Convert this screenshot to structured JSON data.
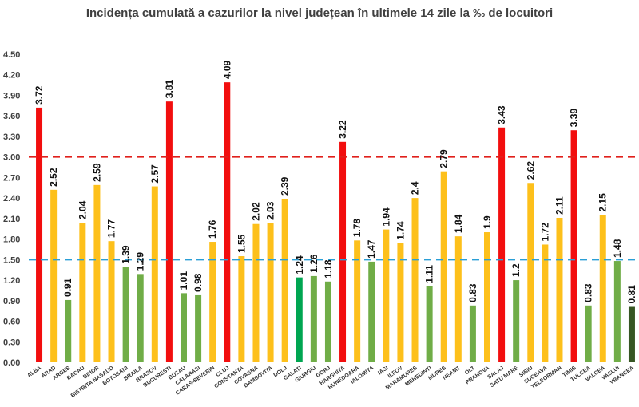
{
  "chart_data": {
    "type": "bar",
    "title": "Incidența cumulată a cazurilor la nivel județean în ultimele 14 zile la ‰ de locuitori",
    "xlabel": "",
    "ylabel": "",
    "ylim": [
      0,
      4.5
    ],
    "yticks": [
      "0.00",
      "0.30",
      "0.60",
      "0.90",
      "1.20",
      "1.50",
      "1.80",
      "2.10",
      "2.40",
      "2.70",
      "3.00",
      "3.30",
      "3.60",
      "3.90",
      "4.20",
      "4.50"
    ],
    "grid": false,
    "legend": "none",
    "categories": [
      "ALBA",
      "ARAD",
      "ARGES",
      "BACAU",
      "BIHOR",
      "BISTRITA NASAUD",
      "BOTOSANI",
      "BRAILA",
      "BRASOV",
      "BUCURESTI",
      "BUZAU",
      "CALARASI",
      "CARAS-SEVERIN",
      "CLUJ",
      "CONSTANTA",
      "COVASNA",
      "DAMBOVITA",
      "DOLJ",
      "GALATI",
      "GIURGIU",
      "GORJ",
      "HARGHITA",
      "HUNEDOARA",
      "IALOMITA",
      "IASI",
      "ILFOV",
      "MARAMURES",
      "MEHEDINTI",
      "MURES",
      "NEAMT",
      "OLT",
      "PRAHOVA",
      "SALAJ",
      "SATU MARE",
      "SIBIU",
      "SUCEAVA",
      "TELEORMAN",
      "TIMIS",
      "TULCEA",
      "VALCEA",
      "VASLUI",
      "VRANCEA"
    ],
    "values": [
      3.72,
      2.52,
      0.91,
      2.04,
      2.59,
      1.77,
      1.39,
      1.29,
      2.57,
      3.81,
      1.01,
      0.98,
      1.76,
      4.09,
      1.55,
      2.02,
      2.03,
      2.39,
      1.24,
      1.26,
      1.18,
      3.22,
      1.78,
      1.47,
      1.94,
      1.74,
      2.4,
      1.11,
      2.79,
      1.84,
      0.83,
      1.9,
      3.43,
      1.2,
      2.62,
      1.72,
      2.11,
      3.39,
      0.83,
      2.15,
      1.48,
      0.81
    ],
    "value_labels": [
      "3.72",
      "2.52",
      "0.91",
      "2.04",
      "2.59",
      "1.77",
      "1.39",
      "1.29",
      "2.57",
      "3.81",
      "1.01",
      "0.98",
      "1.76",
      "4.09",
      "1.55",
      "2.02",
      "2.03",
      "2.39",
      "1.24",
      "1.26",
      "1.18",
      "3.22",
      "1.78",
      "1.47",
      "1.94",
      "1.74",
      "2.4",
      "1.11",
      "2.79",
      "1.84",
      "0.83",
      "1.9",
      "3.43",
      "1.2",
      "2.62",
      "1.72",
      "2.11",
      "3.39",
      "0.83",
      "2.15",
      "1.48",
      "0.81"
    ],
    "bar_colors": [
      "#f20e0e",
      "#fdc01b",
      "#70ad47",
      "#fdc01b",
      "#fdc01b",
      "#fdc01b",
      "#70ad47",
      "#70ad47",
      "#fdc01b",
      "#f20e0e",
      "#70ad47",
      "#70ad47",
      "#fdc01b",
      "#f20e0e",
      "#fdc01b",
      "#fdc01b",
      "#fdc01b",
      "#fdc01b",
      "#00a651",
      "#70ad47",
      "#70ad47",
      "#f20e0e",
      "#fdc01b",
      "#70ad47",
      "#fdc01b",
      "#fdc01b",
      "#fdc01b",
      "#70ad47",
      "#fdc01b",
      "#fdc01b",
      "#70ad47",
      "#fdc01b",
      "#f20e0e",
      "#70ad47",
      "#fdc01b",
      "#fdc01b",
      "#fdc01b",
      "#f20e0e",
      "#70ad47",
      "#fdc01b",
      "#70ad47",
      "#375623"
    ],
    "threshold_lines": [
      {
        "value": 3.0,
        "color": "#e0201c",
        "style": "dashed"
      },
      {
        "value": 1.5,
        "color": "#2a9fd6",
        "style": "dashed"
      }
    ]
  }
}
